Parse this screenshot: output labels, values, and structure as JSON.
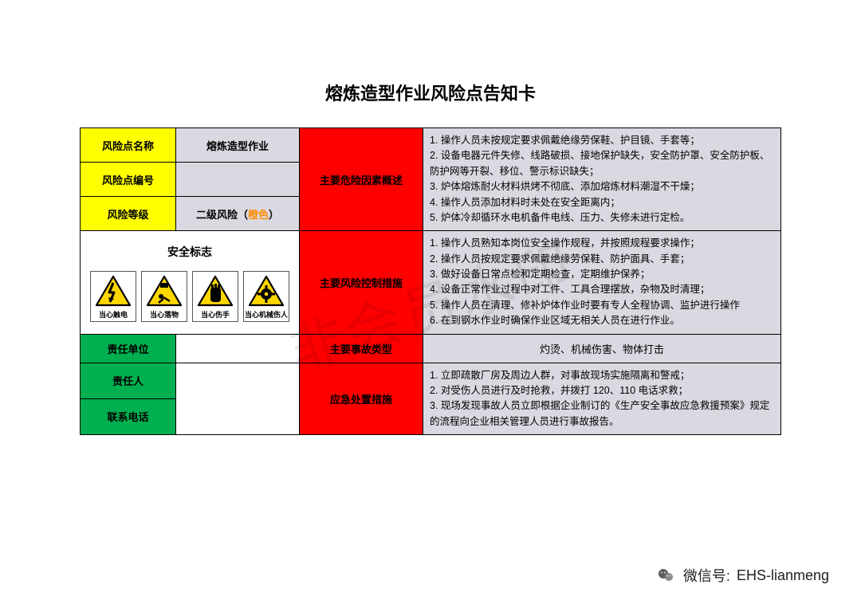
{
  "title": "熔炼造型作业风险点告知卡",
  "labels": {
    "risk_name": "风险点名称",
    "risk_code": "风险点编号",
    "risk_level": "风险等级",
    "safety_sign": "安全标志",
    "resp_unit": "责任单位",
    "resp_person": "责任人",
    "contact": "联系电话"
  },
  "values": {
    "risk_name": "熔炼造型作业",
    "risk_code": "",
    "risk_level_pre": "二级风险（",
    "risk_level_color": "橙色",
    "risk_level_post": "）",
    "resp_unit": "",
    "resp_person": "",
    "contact": ""
  },
  "red_headers": {
    "hazard": "主要危险因素概述",
    "control": "主要风险控制措施",
    "accident": "主要事故类型",
    "emergency": "应急处置措施"
  },
  "hazard_list": "1. 操作人员未按规定要求佩戴绝缘劳保鞋、护目镜、手套等；\n2. 设备电器元件失修、线路破损、接地保护缺失，安全防护罩、安全防护板、防护网等开裂、移位、警示标识缺失；\n3. 炉体熔炼耐火材料烘烤不彻底、添加熔炼材料潮湿不干燥；\n4. 操作人员添加材料时未处在安全距离内；\n5. 炉体冷却循环水电机备件电线、压力、失修未进行定检。",
  "control_list": "1. 操作人员熟知本岗位安全操作规程，并按照规程要求操作；\n2. 操作人员按规定要求佩戴绝缘劳保鞋、防护面具、手套；\n3. 做好设备日常点检和定期检查，定期维护保养；\n4. 设备正常作业过程中对工件、工具合理摆放，杂物及时清理；\n5. 操作人员在清理、修补炉体作业时要有专人全程协调、监护进行操作\n6. 在到钢水作业时确保作业区域无相关人员在进行作业。",
  "accident_types": "灼烫、机械伤害、物体打击",
  "emergency_list": "1. 立即疏散厂房及周边人群，对事故现场实施隔离和警戒；\n2. 对受伤人员进行及时抢救，并拨打 120、110 电话求救；\n3. 现场发现事故人员立即根据企业制订的《生产安全事故应急救援预案》规定的流程向企业相关管理人员进行事故报告。",
  "signs": [
    {
      "label": "当心触电",
      "icon": "bolt"
    },
    {
      "label": "当心落物",
      "icon": "falling"
    },
    {
      "label": "当心伤手",
      "icon": "hand"
    },
    {
      "label": "当心机械伤人",
      "icon": "gear"
    }
  ],
  "colors": {
    "yellow": "#ffff00",
    "green": "#00b050",
    "red": "#ff0000",
    "gray": "#d9d9e1",
    "orange": "#ff8c00",
    "sign_yellow": "#ffd700"
  },
  "watermark": "非会员水印",
  "footer": {
    "label": "微信号:",
    "id": "EHS-lianmeng"
  }
}
